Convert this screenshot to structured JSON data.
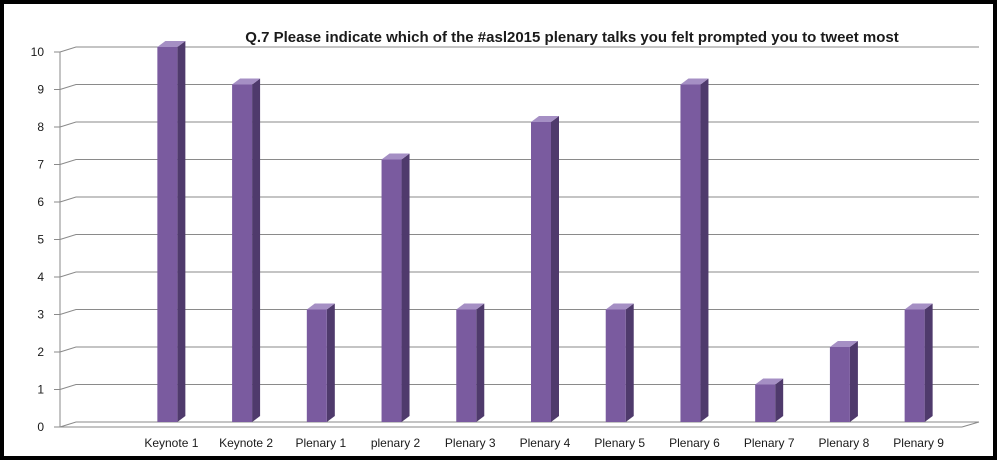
{
  "chart_data": {
    "type": "bar",
    "title": "Q.7 Please indicate which of the #asl2015 plenary talks you felt prompted you to tweet most",
    "categories": [
      "Keynote 1",
      "Keynote 2",
      "Plenary 1",
      "plenary 2",
      "Plenary 3",
      "Plenary 4",
      "Plenary 5",
      "Plenary 6",
      "Plenary 7",
      "Plenary 8",
      "Plenary 9"
    ],
    "values": [
      10,
      9,
      3,
      7,
      3,
      8,
      3,
      9,
      1,
      2,
      3
    ],
    "yticks": [
      "0",
      "1",
      "2",
      "3",
      "4",
      "5",
      "6",
      "7",
      "8",
      "9",
      "10"
    ],
    "ylim": [
      0,
      10
    ],
    "grid": true,
    "legend": "none",
    "bar_colors": {
      "front": "#7a5b9f",
      "side": "#4f3a6c",
      "top": "#a58fc4"
    },
    "grid_color": "#8a8a8a"
  }
}
